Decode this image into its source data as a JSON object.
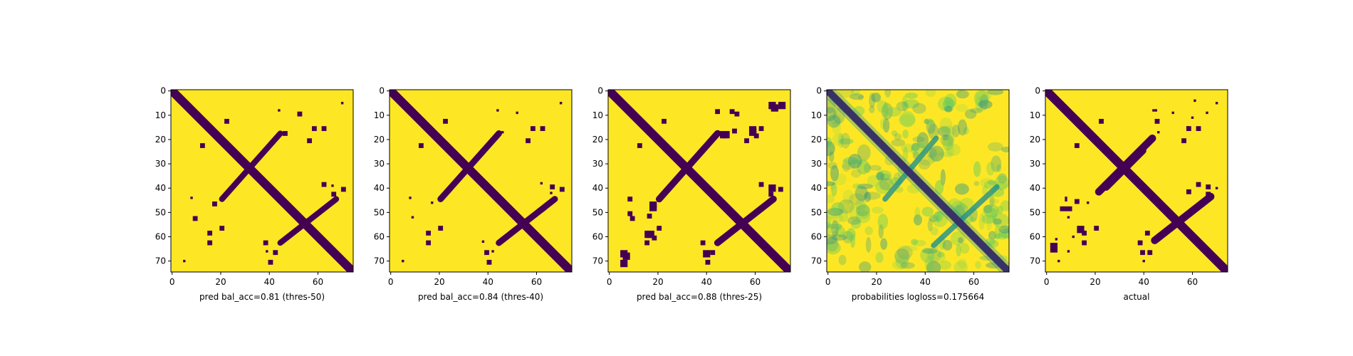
{
  "chart_data": [
    {
      "type": "heatmap",
      "matrix_size": 75,
      "xlabel": "pred bal_acc=0.81 (thres-50)",
      "variant": "binary",
      "x_ticks": [
        0,
        20,
        40,
        60
      ],
      "y_ticks": [
        0,
        10,
        20,
        30,
        40,
        50,
        60,
        70
      ],
      "colors": {
        "low": "#440154",
        "high": "#fde725"
      }
    },
    {
      "type": "heatmap",
      "matrix_size": 75,
      "xlabel": "pred bal_acc=0.84 (thres-40)",
      "variant": "binary",
      "x_ticks": [
        0,
        20,
        40,
        60
      ],
      "y_ticks": [
        0,
        10,
        20,
        30,
        40,
        50,
        60,
        70
      ],
      "colors": {
        "low": "#440154",
        "high": "#fde725"
      }
    },
    {
      "type": "heatmap",
      "matrix_size": 75,
      "xlabel": "pred bal_acc=0.88 (thres-25)",
      "variant": "binary",
      "x_ticks": [
        0,
        20,
        40,
        60
      ],
      "y_ticks": [
        0,
        10,
        20,
        30,
        40,
        50,
        60,
        70
      ],
      "colors": {
        "low": "#440154",
        "high": "#fde725"
      }
    },
    {
      "type": "heatmap",
      "matrix_size": 75,
      "xlabel": "probabilities logloss=0.175664",
      "variant": "probability",
      "x_ticks": [
        0,
        20,
        40,
        60
      ],
      "y_ticks": [
        0,
        10,
        20,
        30,
        40,
        50,
        60,
        70
      ],
      "colors": {
        "low": "#440154",
        "mid": "#21918c",
        "high": "#fde725"
      }
    },
    {
      "type": "heatmap",
      "matrix_size": 75,
      "xlabel": "actual",
      "variant": "binary",
      "x_ticks": [
        0,
        20,
        40,
        60
      ],
      "y_ticks": [
        0,
        10,
        20,
        30,
        40,
        50,
        60,
        70
      ],
      "colors": {
        "low": "#440154",
        "high": "#fde725"
      }
    }
  ]
}
